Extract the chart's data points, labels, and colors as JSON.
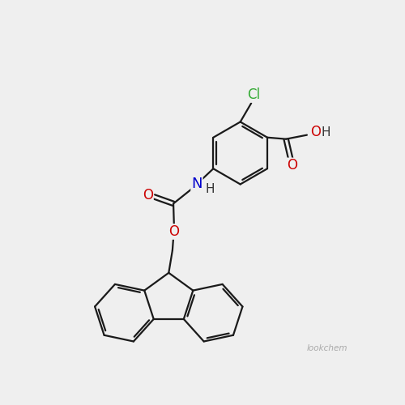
{
  "bg_color": "#efefef",
  "bond_color": "#1a1a1a",
  "bond_width": 1.6,
  "atom_colors": {
    "C": "#1a1a1a",
    "O": "#cc0000",
    "N": "#0000cc",
    "Cl": "#33aa33",
    "H": "#333333"
  },
  "font_size": 12,
  "watermark": "lookchem",
  "watermark_color": "#aaaaaa"
}
